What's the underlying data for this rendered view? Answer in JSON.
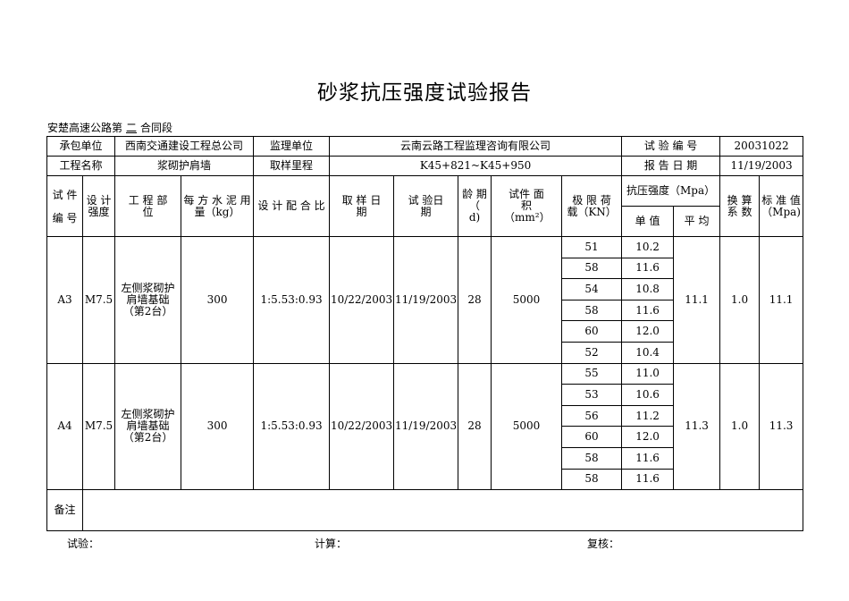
{
  "title": "砂浆抗压强度试验报告",
  "subtitle": {
    "prefix": "安楚高速公路第",
    "section": "二",
    "suffix": "合同段"
  },
  "info": {
    "contractor_label": "承包单位",
    "contractor": "西南交通建设工程总公司",
    "supervisor_label": "监理单位",
    "supervisor": "云南云路工程监理咨询有限公司",
    "test_no_label": "试 验 编 号",
    "test_no": "20031022",
    "project_label": "工程名称",
    "project": "浆砌护肩墙",
    "mileage_label": "取样里程",
    "mileage": "K45+821~K45+950",
    "report_date_label": "报 告 日 期",
    "report_date": "11/19/2003"
  },
  "headers": {
    "specimen_no": "试 件 编 号",
    "design_strength": "设 计 强度",
    "part": "工 程 部 位",
    "cement": "每 方 水 泥 用 量（kg）",
    "mix": "设 计 配 合 比",
    "sample_date": "取 样 日 期",
    "test_date": "试 验日 期",
    "age": "龄 期（ d)",
    "area": "试件 面积（mm²）",
    "load": "极 限 荷 载（KN）",
    "strength": "抗压强度（Mpa）",
    "single": "单 值",
    "avg": "平 均",
    "factor": "换 算 系 数",
    "std": "标 准 值（Mpa)"
  },
  "rows": [
    {
      "id": "A3",
      "grade": "M7.5",
      "part": "左侧浆砌护肩墙基础（第2台）",
      "cement": "300",
      "mix": "1:5.53:0.93",
      "sample_date": "10/22/2003",
      "test_date": "11/19/2003",
      "age": "28",
      "area": "5000",
      "loads": [
        "51",
        "58",
        "54",
        "58",
        "60",
        "52"
      ],
      "singles": [
        "10.2",
        "11.6",
        "10.8",
        "11.6",
        "12.0",
        "10.4"
      ],
      "avg": "11.1",
      "factor": "1.0",
      "std": "11.1"
    },
    {
      "id": "A4",
      "grade": "M7.5",
      "part": "左侧浆砌护肩墙基础（第2台）",
      "cement": "300",
      "mix": "1:5.53:0.93",
      "sample_date": "10/22/2003",
      "test_date": "11/19/2003",
      "age": "28",
      "area": "5000",
      "loads": [
        "55",
        "53",
        "56",
        "60",
        "58",
        "58"
      ],
      "singles": [
        "11.0",
        "10.6",
        "11.2",
        "12.0",
        "11.6",
        "11.6"
      ],
      "avg": "11.3",
      "factor": "1.0",
      "std": "11.3"
    }
  ],
  "remark_label": "备注",
  "footer": {
    "test": "试验：",
    "calc": "计算：",
    "review": "复核："
  }
}
